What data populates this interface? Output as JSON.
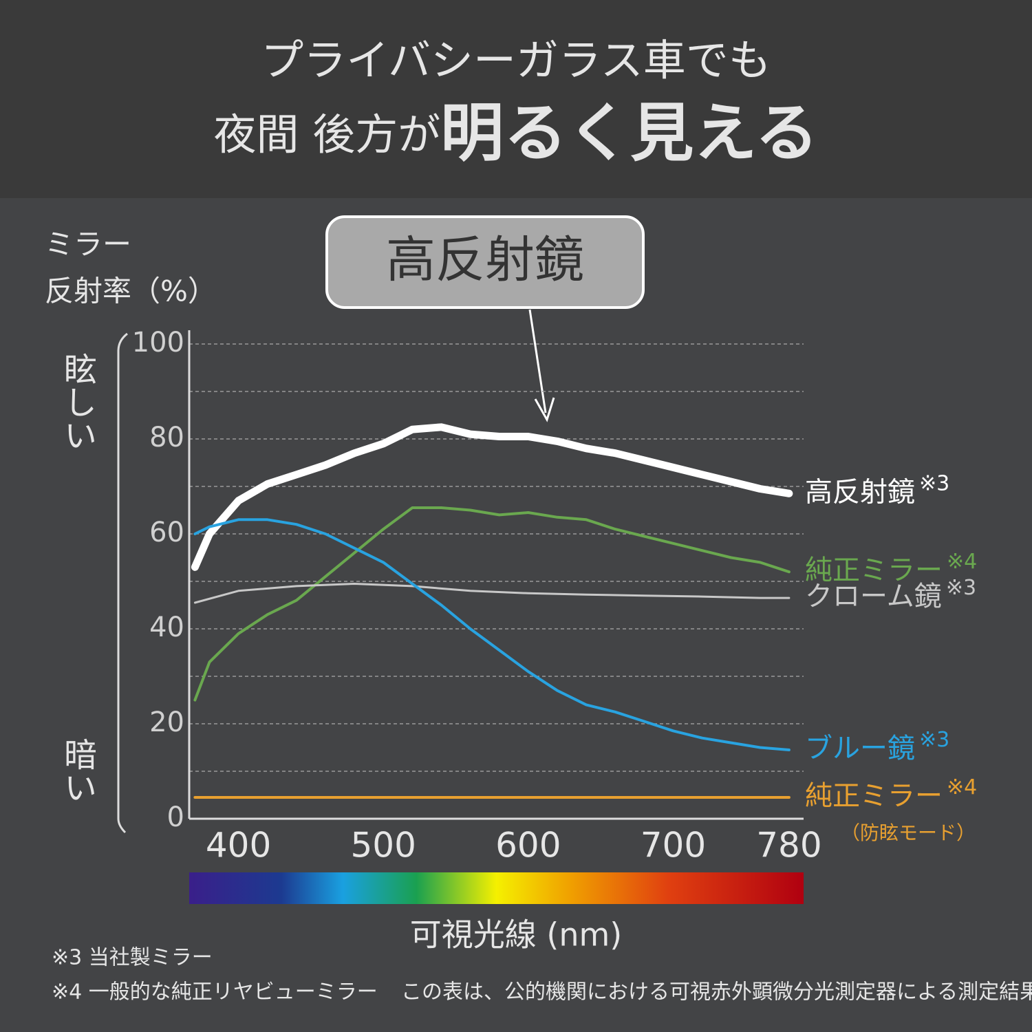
{
  "chart_data": {
    "type": "line",
    "title": [
      "プライバシーガラス車でも",
      "夜間 後方が",
      "明るく見える"
    ],
    "callout": "高反射鏡",
    "ylabel": [
      "ミラー",
      "反射率（%）"
    ],
    "y_direction_labels": {
      "top": "眩しい",
      "bottom": "暗い"
    },
    "xlabel": "可視光線 (nm)",
    "xlim": [
      366,
      790
    ],
    "xticks": [
      400,
      500,
      600,
      700,
      780
    ],
    "ylim": [
      0,
      100
    ],
    "yticks": [
      0,
      20,
      40,
      60,
      80,
      100
    ],
    "minor_yticks": [
      10,
      30,
      50,
      70,
      90
    ],
    "grid": true,
    "series": [
      {
        "name": "高反射鏡",
        "note": "※3",
        "color": "#ffffff",
        "width": 11,
        "x": [
          370,
          380,
          400,
          420,
          440,
          460,
          480,
          500,
          520,
          540,
          560,
          580,
          600,
          620,
          640,
          660,
          680,
          700,
          720,
          740,
          760,
          780
        ],
        "values": [
          53,
          60,
          67,
          70.5,
          72.5,
          74.5,
          77,
          79,
          82,
          82.5,
          81,
          80.5,
          80.5,
          79.5,
          78,
          77,
          75.5,
          74,
          72.5,
          71,
          69.5,
          68.5
        ]
      },
      {
        "name": "純正ミラー",
        "note": "※4",
        "color": "#6aa84f",
        "width": 4,
        "x": [
          370,
          380,
          400,
          420,
          440,
          460,
          480,
          500,
          520,
          540,
          560,
          580,
          600,
          620,
          640,
          660,
          680,
          700,
          720,
          740,
          760,
          780
        ],
        "values": [
          25,
          33,
          39,
          43,
          46,
          51,
          56,
          61,
          65.5,
          65.5,
          65,
          64,
          64.5,
          63.5,
          63,
          61,
          59.5,
          58,
          56.5,
          55,
          54,
          52
        ]
      },
      {
        "name": "クローム鏡",
        "note": "※3",
        "color": "#c8c8c8",
        "width": 3,
        "x": [
          370,
          400,
          440,
          480,
          520,
          560,
          600,
          640,
          680,
          720,
          760,
          780
        ],
        "values": [
          45.5,
          48,
          49,
          49.5,
          49,
          48,
          47.5,
          47.2,
          47,
          46.8,
          46.5,
          46.5
        ]
      },
      {
        "name": "ブルー鏡",
        "note": "※3",
        "color": "#29a3e0",
        "width": 4,
        "x": [
          370,
          380,
          400,
          420,
          440,
          460,
          480,
          500,
          520,
          540,
          560,
          580,
          600,
          620,
          640,
          660,
          680,
          700,
          720,
          740,
          760,
          780
        ],
        "values": [
          60,
          61.5,
          63,
          63,
          62,
          60,
          57,
          54,
          49.5,
          45,
          40,
          35.5,
          31,
          27,
          24,
          22.5,
          20.5,
          18.5,
          17,
          16,
          15,
          14.5
        ]
      },
      {
        "name": "純正ミラー",
        "note": "※4",
        "sublabel": "（防眩モード）",
        "color": "#e8a030",
        "width": 4,
        "x": [
          370,
          780
        ],
        "values": [
          4.5,
          4.5
        ]
      }
    ],
    "footnotes": [
      "※3 当社製ミラー",
      "※4 一般的な純正リヤビューミラー"
    ],
    "source_note": "この表は、公的機関における可視赤外顕微分光測定器による測定結果"
  }
}
